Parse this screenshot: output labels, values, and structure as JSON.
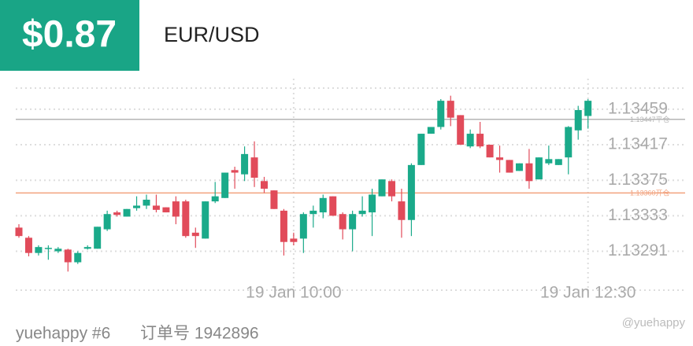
{
  "header": {
    "price": "$0.87",
    "symbol": "EUR/USD"
  },
  "footer": {
    "user": "yuehappy #6",
    "order": "订单号 1942896",
    "watermark": "@yuehappy"
  },
  "chart_data": {
    "type": "candlestick",
    "up_color": "#1aaa8a",
    "down_color": "#e14b5a",
    "ylim": [
      1.13245,
      1.13484
    ],
    "yticks": [
      1.13459,
      1.13417,
      1.13375,
      1.13333,
      1.13291
    ],
    "xticks": [
      {
        "value": 28,
        "label": "19 Jan 10:00"
      },
      {
        "value": 58,
        "label": "19 Jan 12:30"
      }
    ],
    "grid": true,
    "lines": [
      {
        "value": 1.13447,
        "label": "1.13447平仓",
        "color": "#b5b5b5"
      },
      {
        "value": 1.1336,
        "label": "1.13360开仓",
        "color": "#f2a27e"
      }
    ],
    "open": [
      1.13319,
      1.13307,
      1.13289,
      1.13294,
      1.13291,
      1.13293,
      1.13278,
      1.13294,
      1.13294,
      1.13317,
      1.13337,
      1.13332,
      1.13342,
      1.13345,
      1.13345,
      1.13343,
      1.1335,
      1.1335,
      1.13313,
      1.13306,
      1.1335,
      1.13354,
      1.13387,
      1.13382,
      1.13402,
      1.13374,
      1.13363,
      1.13339,
      1.13306,
      1.13306,
      1.13335,
      1.13337,
      1.13356,
      1.13335,
      1.13317,
      1.13335,
      1.13337,
      1.13356,
      1.13374,
      1.1335,
      1.13328,
      1.13393,
      1.1343,
      1.13438,
      1.13469,
      1.13452,
      1.13415,
      1.1343,
      1.13417,
      1.13402,
      1.13399,
      1.13386,
      1.13395,
      1.13376,
      1.13395,
      1.13393,
      1.13402,
      1.13434,
      1.13451
    ],
    "high": [
      1.13323,
      1.13309,
      1.13298,
      1.13298,
      1.13296,
      1.13294,
      1.13291,
      1.13298,
      1.1332,
      1.13339,
      1.13339,
      1.13341,
      1.13356,
      1.13358,
      1.13358,
      1.13343,
      1.13356,
      1.13352,
      1.13319,
      1.1335,
      1.13373,
      1.13384,
      1.13391,
      1.13415,
      1.13421,
      1.13379,
      1.13363,
      1.13341,
      1.13313,
      1.13337,
      1.13345,
      1.13358,
      1.13356,
      1.13337,
      1.13339,
      1.13356,
      1.13365,
      1.13376,
      1.13376,
      1.13365,
      1.13395,
      1.1343,
      1.13438,
      1.13471,
      1.13475,
      1.13452,
      1.13435,
      1.13444,
      1.13417,
      1.13416,
      1.13399,
      1.13395,
      1.13412,
      1.13402,
      1.13416,
      1.134,
      1.13439,
      1.13463,
      1.13471
    ],
    "low": [
      1.13307,
      1.13285,
      1.13286,
      1.13281,
      1.13289,
      1.13267,
      1.13276,
      1.13293,
      1.13294,
      1.13315,
      1.13332,
      1.13332,
      1.13339,
      1.13341,
      1.13337,
      1.13337,
      1.13323,
      1.13307,
      1.13295,
      1.13306,
      1.13348,
      1.13354,
      1.13365,
      1.13374,
      1.13367,
      1.1336,
      1.13341,
      1.13286,
      1.13298,
      1.13289,
      1.13319,
      1.1333,
      1.13333,
      1.13305,
      1.13291,
      1.13332,
      1.13309,
      1.13356,
      1.1335,
      1.13307,
      1.13309,
      1.13393,
      1.1343,
      1.13435,
      1.13439,
      1.13417,
      1.13413,
      1.13413,
      1.13402,
      1.13384,
      1.13384,
      1.13386,
      1.13365,
      1.13376,
      1.13393,
      1.13393,
      1.13382,
      1.13423,
      1.13436
    ],
    "close": [
      1.13309,
      1.13289,
      1.13296,
      1.13295,
      1.13294,
      1.13278,
      1.13289,
      1.13296,
      1.1332,
      1.13335,
      1.13334,
      1.13341,
      1.13345,
      1.13352,
      1.1334,
      1.13337,
      1.13332,
      1.13309,
      1.13309,
      1.1335,
      1.13356,
      1.13384,
      1.13384,
      1.13406,
      1.13378,
      1.13365,
      1.13341,
      1.13302,
      1.13302,
      1.13335,
      1.13339,
      1.13354,
      1.13333,
      1.13317,
      1.13335,
      1.13339,
      1.13358,
      1.13376,
      1.13356,
      1.13328,
      1.13393,
      1.1343,
      1.13438,
      1.13469,
      1.13449,
      1.13417,
      1.1343,
      1.13415,
      1.13402,
      1.13399,
      1.13384,
      1.13395,
      1.13374,
      1.13402,
      1.134,
      1.134,
      1.13438,
      1.13458,
      1.13469
    ]
  }
}
